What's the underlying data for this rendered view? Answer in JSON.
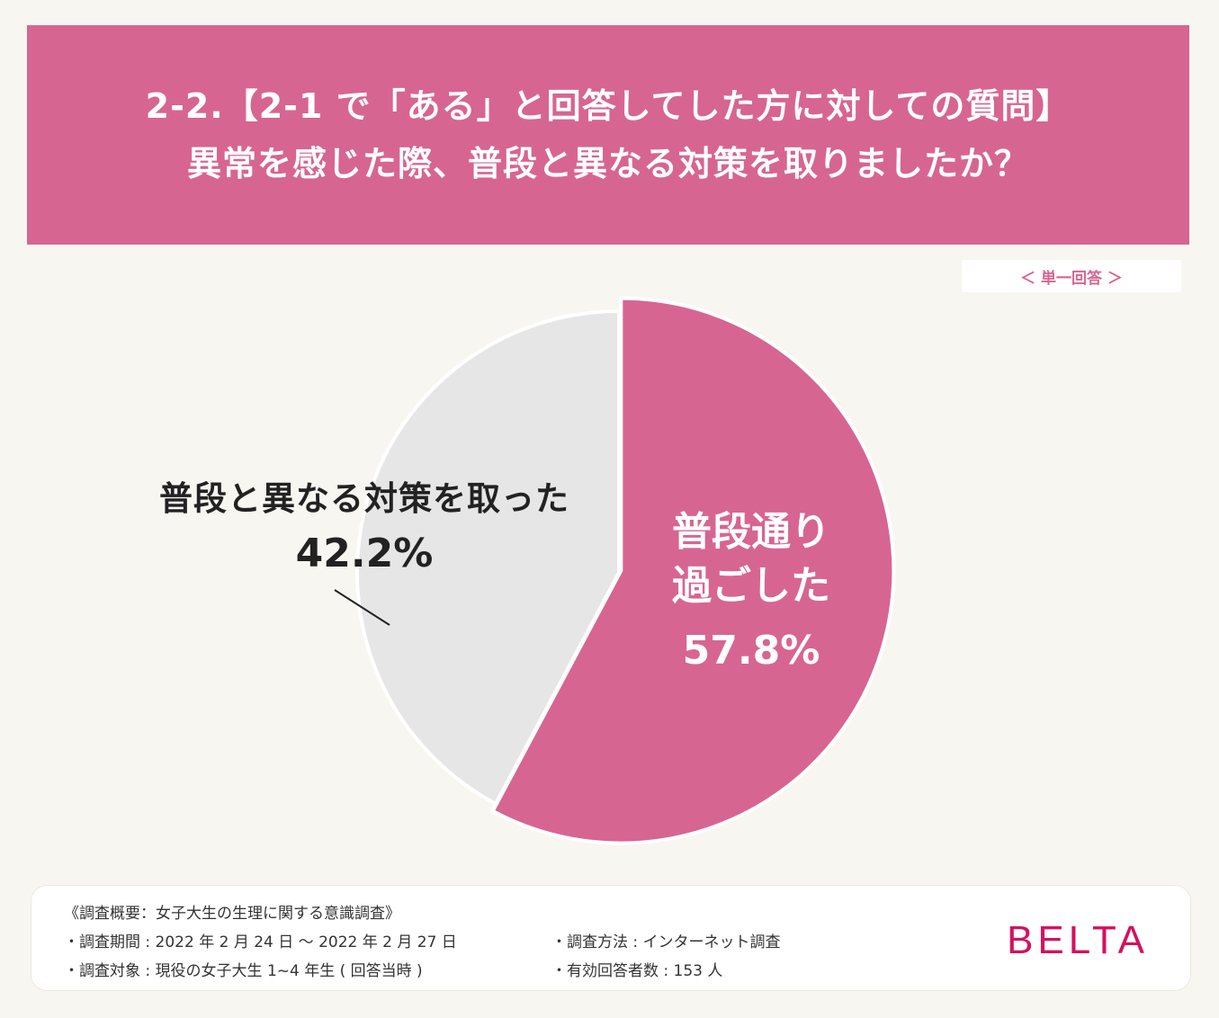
{
  "header": {
    "line1": "2-2.【2-1 で「ある」と回答してした方に対しての質問】",
    "line2": "異常を感じた際、普段と異なる対策を取りましたか？"
  },
  "answer_type": "＜ 単一回答 ＞",
  "chart_data": {
    "type": "pie",
    "unit": "%",
    "slices": [
      {
        "label_line1": "普段通り",
        "label_line2": "過ごした",
        "value": 57.8,
        "value_label": "57.8%",
        "color": "#d76591"
      },
      {
        "label_line1": "普段と異なる対策を取った",
        "label_line2": "",
        "value": 42.2,
        "value_label": "42.2%",
        "color": "#e6e6e6"
      }
    ]
  },
  "footer": {
    "title": "《調査概要：女子大生の生理に関する意識調査》",
    "period": "・調査期間 : 2022 年 2 月 24 日 ～ 2022 年 2 月 27 日",
    "target": "・調査対象 : 現役の女子大生 1~4 年生 ( 回答当時 )",
    "method": "・調査方法 : インターネット調査",
    "count": "・有効回答者数 : 153 人"
  },
  "logo": "BELTA",
  "colors": {
    "accent": "#d76591",
    "other_slice": "#e6e6e6",
    "background": "#f8f6f1",
    "logo": "#d4125f"
  }
}
